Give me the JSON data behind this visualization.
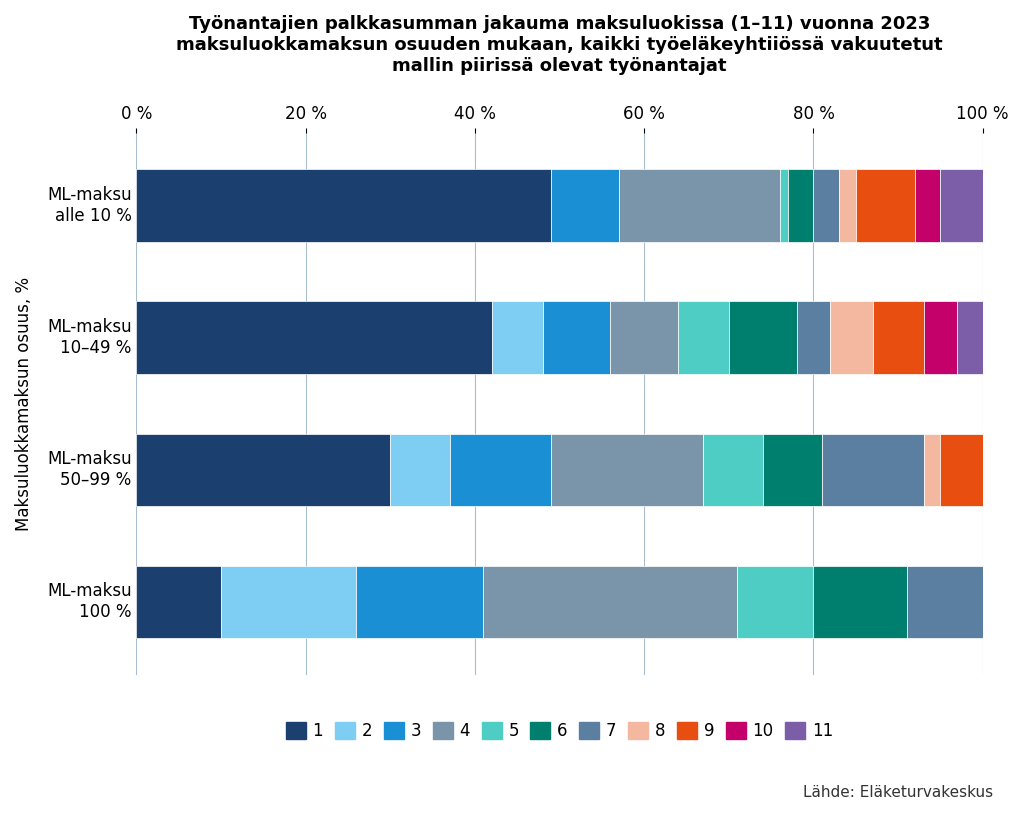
{
  "title": "Työnantajien palkkasumman jakauma maksuluokissa (1–11) vuonna 2023\nmaksuluokkamaksun osuuden mukaan, kaikki työeläkeyhtiiössä vakuutetut\nmallin piirissä olevat työnantajat",
  "ylabel": "Maksuluokkamaksun osuus, %",
  "source": "Lähde: Eläketurvakeskus",
  "categories": [
    "ML-maksu\nalle 10 %",
    "ML-maksu\n10–49 %",
    "ML-maksu\n50–99 %",
    "ML-maksu\n100 %"
  ],
  "legend_labels": [
    "1",
    "2",
    "3",
    "4",
    "5",
    "6",
    "7",
    "8",
    "9",
    "10",
    "11"
  ],
  "colors": [
    "#1b3f6e",
    "#7ecef4",
    "#1b8fd4",
    "#7a94aa",
    "#4ecdc4",
    "#007f6e",
    "#5a7fa0",
    "#f4b8a0",
    "#e84e0f",
    "#c4006a",
    "#7b5ea7"
  ],
  "data": [
    [
      49,
      0,
      8,
      19,
      1,
      3,
      3,
      2,
      7,
      3,
      5
    ],
    [
      42,
      6,
      8,
      8,
      6,
      8,
      4,
      5,
      6,
      4,
      3
    ],
    [
      30,
      7,
      12,
      18,
      7,
      7,
      12,
      2,
      5,
      0,
      0
    ],
    [
      10,
      16,
      15,
      30,
      9,
      11,
      9,
      0,
      0,
      0,
      0
    ]
  ],
  "xlim": [
    0,
    100
  ],
  "xticks": [
    0,
    20,
    40,
    60,
    80,
    100
  ],
  "xticklabels": [
    "0 %",
    "20 %",
    "40 %",
    "60 %",
    "80 %",
    "100 %"
  ],
  "background_color": "#ffffff",
  "grid_color": "#a8bece",
  "bar_height": 0.55,
  "title_fontsize": 13,
  "tick_fontsize": 12,
  "ylabel_fontsize": 12,
  "legend_fontsize": 12,
  "source_fontsize": 11
}
